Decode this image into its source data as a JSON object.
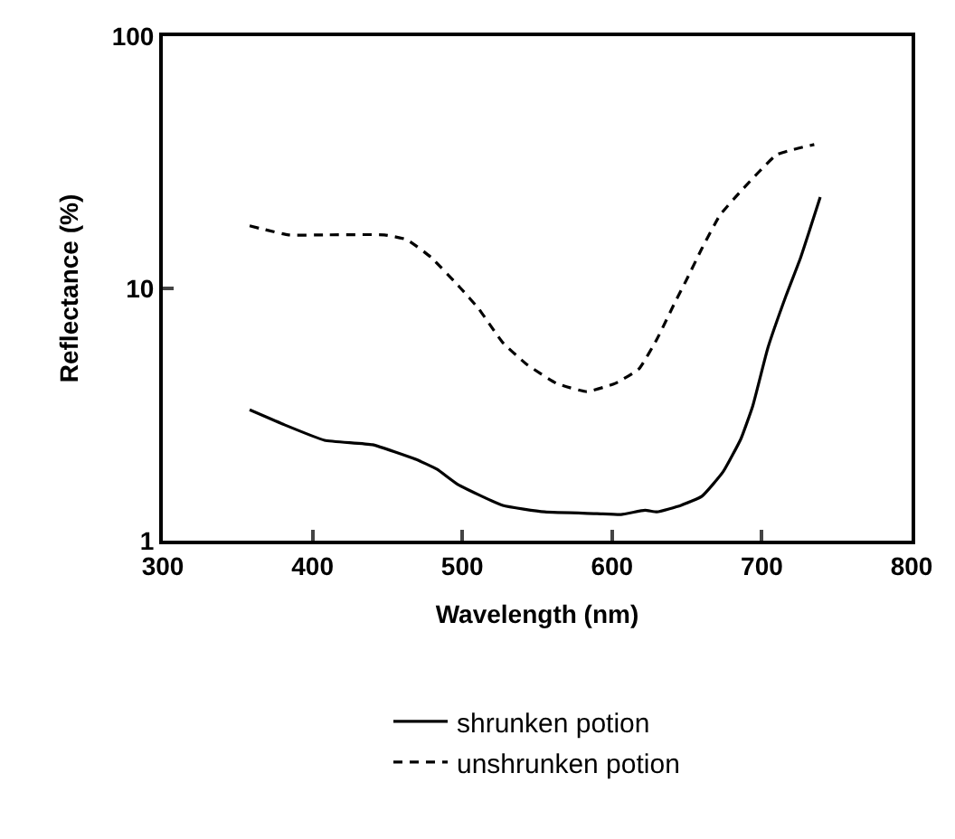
{
  "chart_data": {
    "type": "line",
    "xlabel": "Wavelength (nm)",
    "ylabel": "Reflectance (%)",
    "log": "y",
    "xlim": [
      300,
      800
    ],
    "xticks": [
      300,
      400,
      500,
      600,
      700,
      800
    ],
    "ylim": [
      1,
      100
    ],
    "yticks": [
      1,
      10,
      100
    ],
    "legend": "bottom",
    "series": [
      {
        "name": "shrunken potion",
        "color": "#000000",
        "line_style": "solid",
        "x": [
          358,
          380,
          408,
          440,
          469,
          483,
          497,
          527,
          555,
          590,
          606,
          622,
          630,
          646,
          660,
          674,
          686,
          694,
          704,
          716,
          726,
          739
        ],
        "values": [
          3.3,
          2.9,
          2.5,
          2.4,
          2.1,
          1.92,
          1.67,
          1.38,
          1.3,
          1.28,
          1.27,
          1.32,
          1.3,
          1.38,
          1.5,
          1.87,
          2.53,
          3.43,
          5.8,
          9.3,
          13.3,
          23
        ]
      },
      {
        "name": "unshrunken potion",
        "color": "#000000",
        "line_style": "dashed",
        "x": [
          358,
          384,
          408,
          448,
          463,
          479,
          499,
          511,
          527,
          543,
          563,
          583,
          602,
          618,
          630,
          642,
          650,
          660,
          672,
          686,
          710,
          735
        ],
        "values": [
          17.7,
          16.3,
          16.3,
          16.3,
          15.6,
          13.3,
          10.0,
          8.3,
          6.1,
          5.0,
          4.2,
          3.9,
          4.2,
          4.8,
          6.3,
          8.8,
          10.9,
          14.4,
          19.5,
          24.3,
          33.9,
          37.2
        ]
      }
    ]
  }
}
